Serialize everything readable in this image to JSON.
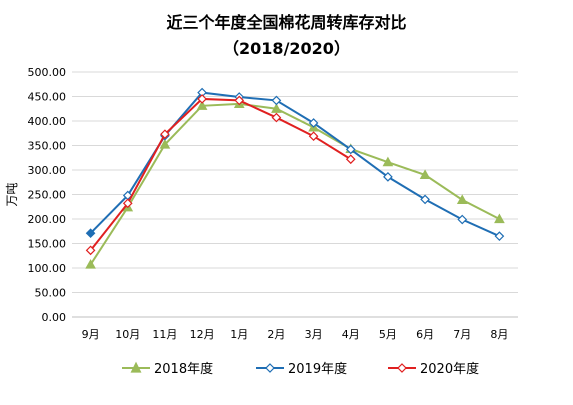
{
  "title_line1": "近三个年度全国棉花周转库存对比",
  "title_line2": "（2018/2020）",
  "chart_data": {
    "type": "line",
    "title": "近三个年度全国棉花周转库存对比（2018/2020）",
    "ylabel": "万吨",
    "xlabel": "",
    "categories": [
      "9月",
      "10月",
      "11月",
      "12月",
      "1月",
      "2月",
      "3月",
      "4月",
      "5月",
      "6月",
      "7月",
      "8月"
    ],
    "ylim": [
      0,
      500
    ],
    "ytick_step": 50,
    "ytick_labels": [
      "0.00",
      "50.00",
      "100.00",
      "150.00",
      "200.00",
      "250.00",
      "300.00",
      "350.00",
      "400.00",
      "450.00",
      "500.00"
    ],
    "grid": true,
    "legend_position": "bottom",
    "series": [
      {
        "name": "2018年度",
        "color": "#9BBB59",
        "marker": "triangle",
        "values": [
          107,
          224,
          352,
          431,
          435,
          425,
          387,
          343,
          316,
          290,
          239,
          200
        ]
      },
      {
        "name": "2019年度",
        "color": "#1F6EB4",
        "marker": "diamond",
        "values": [
          171,
          248,
          370,
          458,
          449,
          442,
          396,
          342,
          286,
          240,
          199,
          165
        ]
      },
      {
        "name": "2020年度",
        "color": "#E02020",
        "marker": "diamond",
        "values": [
          136,
          232,
          373,
          445,
          442,
          407,
          369,
          322,
          null,
          null,
          null,
          null
        ]
      }
    ]
  }
}
